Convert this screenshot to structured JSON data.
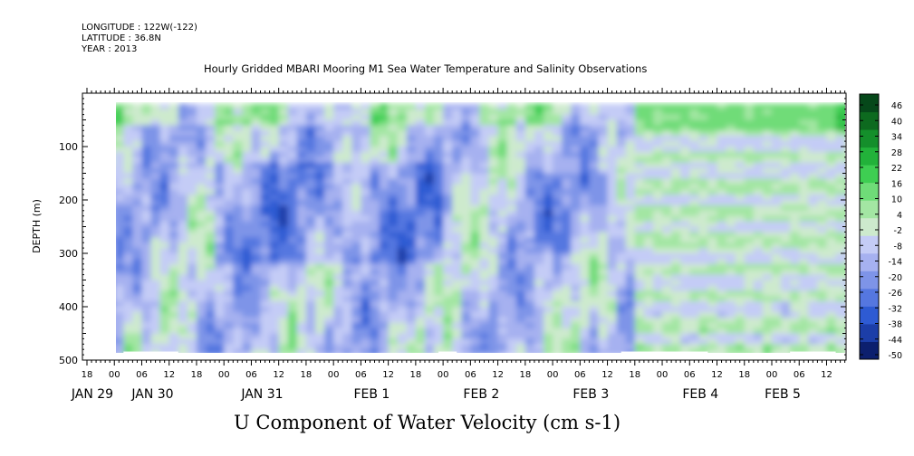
{
  "header": {
    "longitude": "LONGITUDE : 122W(-122)",
    "latitude": "LATITUDE : 36.8N",
    "year": "YEAR : 2013"
  },
  "chart_data": {
    "type": "heatmap",
    "title": "Hourly Gridded MBARI Mooring M1 Sea Water Temperature and Salinity Observations",
    "variable_label": "U Component of Water Velocity (cm s-1)",
    "ylabel": "DEPTH (m)",
    "y_axis": {
      "ylim": [
        500,
        0
      ],
      "inverted": true,
      "ticks": [
        100,
        200,
        300,
        400,
        500
      ]
    },
    "x_axis": {
      "hour_ticks": [
        "18",
        "00",
        "06",
        "12",
        "18",
        "00",
        "06",
        "12",
        "18",
        "00",
        "06",
        "12",
        "18",
        "00",
        "06",
        "12",
        "18",
        "00",
        "06",
        "12",
        "18",
        "00",
        "06",
        "12",
        "18",
        "00",
        "06",
        "12"
      ],
      "day_labels": [
        "JAN 29",
        "JAN 30",
        "JAN 31",
        "FEB  1",
        "FEB  2",
        "FEB  3",
        "FEB  4",
        "FEB  5"
      ]
    },
    "colorbar": {
      "ticks": [
        "46",
        "40",
        "34",
        "28",
        "22",
        "16",
        "10",
        "4",
        "-2",
        "-8",
        "-14",
        "-20",
        "-26",
        "-32",
        "-38",
        "-44",
        "-50"
      ],
      "range": [
        -50,
        52
      ],
      "colors_low_to_high": [
        "#0c1f6e",
        "#1c3ea8",
        "#2e5bd3",
        "#5577e0",
        "#7e94e8",
        "#a6b1f0",
        "#c4ccf6",
        "#cdeacd",
        "#a3e6a3",
        "#6fdc78",
        "#3ece52",
        "#22b23a",
        "#148f2b",
        "#0d6a1f",
        "#06481a"
      ]
    },
    "grid": false,
    "data_extent": {
      "start": "JAN 29 20:00",
      "end": "FEB 5 17:00",
      "depth_min": 20,
      "depth_max": 490
    },
    "structure": {
      "upper_layer_0_60m": "mostly weakly positive (light green), stronger positive near FEB 3 18:00 and FEB 5",
      "mid_column_100_300m_JAN31_FEB2": "negative (-14 to -26, blue)",
      "deep_400_490m": "alternating small positive and negative patches",
      "FEB3_12_to_FEB4_12": "horizontally banded light green / light blue (interpolated)"
    }
  }
}
